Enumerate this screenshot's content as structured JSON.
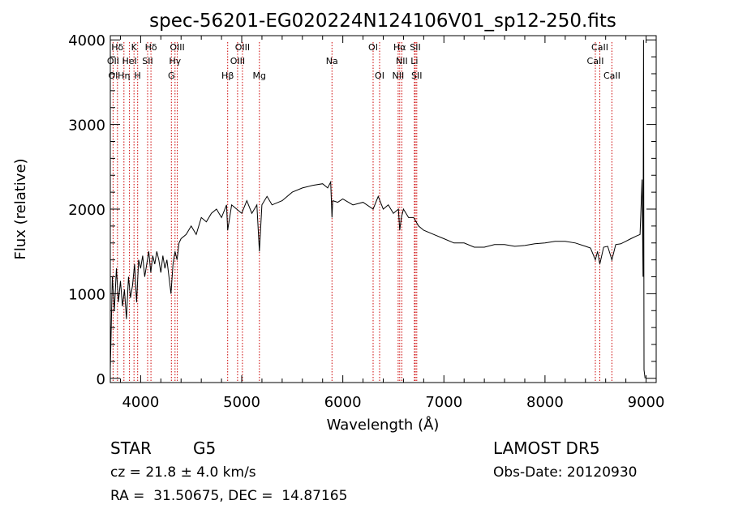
{
  "chart_data": {
    "type": "line",
    "title": "spec-56201-EG020224N124106V01_sp12-250.fits",
    "xlabel": "Wavelength (Å)",
    "ylabel": "Flux (relative)",
    "xlim": [
      3700,
      9100
    ],
    "ylim": [
      -50,
      4050
    ],
    "x_ticks": [
      4000,
      5000,
      6000,
      7000,
      8000,
      9000
    ],
    "y_ticks": [
      0,
      1000,
      2000,
      3000,
      4000
    ],
    "grid": false,
    "line_color": "#000000",
    "marker_color": "#cc0000",
    "series": [
      {
        "x": [
          3700,
          3720,
          3740,
          3760,
          3780,
          3800,
          3820,
          3840,
          3860,
          3880,
          3900,
          3920,
          3940,
          3960,
          3980,
          4000,
          4020,
          4040,
          4060,
          4080,
          4100,
          4120,
          4140,
          4160,
          4180,
          4200,
          4220,
          4240,
          4260,
          4280,
          4300,
          4320,
          4340,
          4360,
          4380,
          4400,
          4450,
          4500,
          4550,
          4600,
          4650,
          4700,
          4750,
          4800,
          4850,
          4861,
          4900,
          4950,
          5000,
          5050,
          5100,
          5150,
          5175,
          5200,
          5250,
          5300,
          5400,
          5500,
          5600,
          5700,
          5800,
          5850,
          5880,
          5893,
          5900,
          5950,
          6000,
          6100,
          6200,
          6300,
          6350,
          6400,
          6450,
          6500,
          6550,
          6563,
          6580,
          6600,
          6650,
          6700,
          6750,
          6800,
          6900,
          7000,
          7100,
          7200,
          7300,
          7400,
          7500,
          7600,
          7700,
          7800,
          7900,
          8000,
          8100,
          8200,
          8300,
          8400,
          8450,
          8498,
          8520,
          8542,
          8580,
          8620,
          8662,
          8700,
          8750,
          8800,
          8850,
          8900,
          8940,
          8960,
          8970,
          8975,
          8980,
          8990
        ],
        "y": [
          100,
          1200,
          800,
          1300,
          900,
          1150,
          850,
          1050,
          700,
          1200,
          950,
          1100,
          1350,
          900,
          1400,
          1300,
          1450,
          1200,
          1350,
          1500,
          1250,
          1450,
          1350,
          1500,
          1400,
          1250,
          1450,
          1300,
          1400,
          1200,
          1000,
          1350,
          1500,
          1400,
          1600,
          1650,
          1700,
          1800,
          1700,
          1900,
          1850,
          1950,
          2000,
          1900,
          2050,
          1750,
          2050,
          2000,
          1950,
          2100,
          1950,
          2050,
          1500,
          2050,
          2150,
          2050,
          2100,
          2200,
          2250,
          2280,
          2300,
          2250,
          2320,
          1900,
          2100,
          2080,
          2120,
          2050,
          2080,
          2000,
          2150,
          2000,
          2050,
          1950,
          2000,
          1750,
          1900,
          2000,
          1900,
          1900,
          1800,
          1750,
          1700,
          1650,
          1600,
          1600,
          1550,
          1550,
          1580,
          1580,
          1560,
          1570,
          1590,
          1600,
          1620,
          1620,
          1600,
          1560,
          1540,
          1400,
          1500,
          1350,
          1550,
          1560,
          1400,
          1580,
          1590,
          1620,
          1650,
          1680,
          1700,
          2350,
          1200,
          4000,
          100,
          0
        ]
      }
    ],
    "lines": [
      {
        "label": "Hδ",
        "x": 3771,
        "row": 0
      },
      {
        "label": "K",
        "x": 3934,
        "row": 0
      },
      {
        "label": "Hδ",
        "x": 4102,
        "row": 0
      },
      {
        "label": "OIII",
        "x": 4363,
        "row": 0
      },
      {
        "label": "OIII",
        "x": 5007,
        "row": 0
      },
      {
        "label": "OI",
        "x": 6300,
        "row": 0
      },
      {
        "label": "Hα",
        "x": 6563,
        "row": 0
      },
      {
        "label": "SII",
        "x": 6717,
        "row": 0
      },
      {
        "label": "CaII",
        "x": 8542,
        "row": 0
      },
      {
        "label": "OII",
        "x": 3727,
        "row": 1
      },
      {
        "label": "HeI",
        "x": 3889,
        "row": 1
      },
      {
        "label": "SII",
        "x": 4069,
        "row": 1
      },
      {
        "label": "Hγ",
        "x": 4340,
        "row": 1
      },
      {
        "label": "OIII",
        "x": 4959,
        "row": 1
      },
      {
        "label": "Na",
        "x": 5893,
        "row": 1
      },
      {
        "label": "NII",
        "x": 6584,
        "row": 1
      },
      {
        "label": "Li",
        "x": 6708,
        "row": 1
      },
      {
        "label": "CaII",
        "x": 8498,
        "row": 1
      },
      {
        "label": "OI",
        "x": 3727,
        "row": 2
      },
      {
        "label": "Hη",
        "x": 3835,
        "row": 2
      },
      {
        "label": "H",
        "x": 3970,
        "row": 2
      },
      {
        "label": "G",
        "x": 4304,
        "row": 2
      },
      {
        "label": "Hβ",
        "x": 4861,
        "row": 2
      },
      {
        "label": "Mg",
        "x": 5175,
        "row": 2
      },
      {
        "label": "OI",
        "x": 6364,
        "row": 2
      },
      {
        "label": "NII",
        "x": 6548,
        "row": 2
      },
      {
        "label": "SII",
        "x": 6731,
        "row": 2
      },
      {
        "label": "CaII",
        "x": 8662,
        "row": 2
      }
    ],
    "marker_x": [
      3727,
      3771,
      3835,
      3889,
      3934,
      3970,
      4069,
      4102,
      4304,
      4340,
      4363,
      4861,
      4959,
      5007,
      5175,
      5893,
      6300,
      6364,
      6548,
      6563,
      6584,
      6708,
      6717,
      6731,
      8498,
      8542,
      8662
    ]
  },
  "info": {
    "object_class": "STAR",
    "subclass": "G5",
    "survey": "LAMOST DR5",
    "redshift": "cz = 21.8 ± 4.0 km/s",
    "obs_date": "Obs-Date: 20120930",
    "coords": "RA =  31.50675, DEC =  14.87165"
  }
}
